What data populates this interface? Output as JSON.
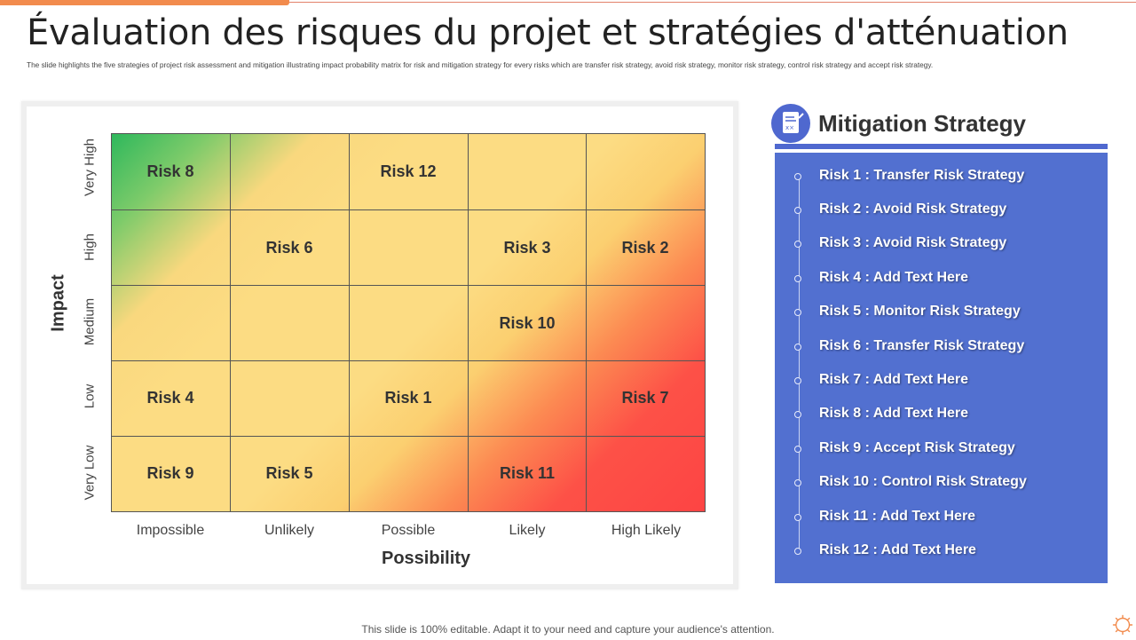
{
  "title": "Évaluation des risques du projet et stratégies d'atténuation",
  "subtitle": "The slide highlights the five strategies of project risk assessment and mitigation illustrating impact probability matrix for risk and mitigation strategy for every risks which are transfer risk strategy, avoid risk strategy, monitor risk strategy, control risk strategy and accept risk strategy.",
  "matrix": {
    "y_axis_label": "Impact",
    "x_axis_label": "Possibility",
    "y_levels": [
      "Very High",
      "High",
      "Medium",
      "Low",
      "Very Low"
    ],
    "x_levels": [
      "Impossible",
      "Unlikely",
      "Possible",
      "Likely",
      "High Likely"
    ],
    "cells": {
      "r0c0": "Risk 8",
      "r0c2": "Risk 12",
      "r1c1": "Risk 6",
      "r1c3": "Risk 3",
      "r1c4": "Risk 2",
      "r2c3": "Risk 10",
      "r3c0": "Risk 4",
      "r3c2": "Risk 1",
      "r3c4": "Risk 7",
      "r4c0": "Risk 9",
      "r4c1": "Risk 5",
      "r4c3": "Risk 11"
    },
    "colors": {
      "low": "#2eb85c",
      "medium": "#fcdc83",
      "high": "#fd4444"
    }
  },
  "panel": {
    "icon": "document-icon",
    "title": "Mitigation Strategy",
    "accent": "#5270d0",
    "items": [
      "Risk 1 : Transfer Risk Strategy",
      "Risk 2 : Avoid Risk Strategy",
      "Risk 3 : Avoid Risk Strategy",
      "Risk 4 : Add Text Here",
      "Risk 5 : Monitor Risk Strategy",
      "Risk 6 : Transfer Risk Strategy",
      "Risk 7 : Add Text Here",
      "Risk 8 : Add Text Here",
      "Risk 9 : Accept Risk Strategy",
      "Risk 10 : Control Risk Strategy",
      "Risk 11 : Add Text Here",
      "Risk 12 : Add Text Here"
    ]
  },
  "footer": "This slide is 100% editable. Adapt it to your need and capture your audience's attention."
}
